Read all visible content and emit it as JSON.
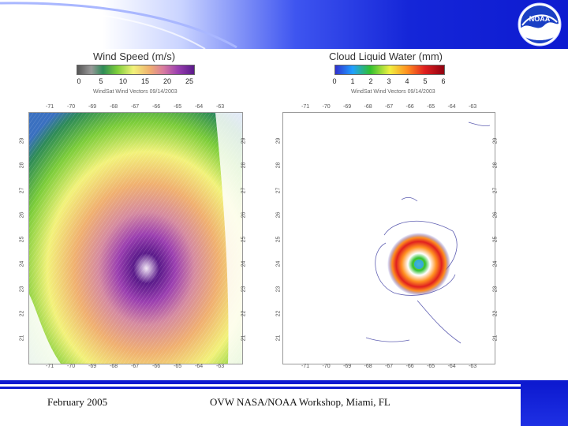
{
  "slide": {
    "footer_left": "February 2005",
    "footer_center": "OVW NASA/NOAA Workshop, Miami, FL",
    "logo_text": "NOAA"
  },
  "left_panel": {
    "legend_title": "Wind Speed (m/s)",
    "legend_ticks": [
      "0",
      "5",
      "10",
      "15",
      "20",
      "25"
    ],
    "subtitle": "WindSat Wind Vectors 09/14/2003",
    "x_ticks": [
      "-71",
      "-70",
      "-69",
      "-68",
      "-67",
      "-66",
      "-65",
      "-64",
      "-63"
    ],
    "y_ticks": [
      "29",
      "28",
      "27",
      "26",
      "25",
      "24",
      "23",
      "22",
      "21"
    ]
  },
  "right_panel": {
    "legend_title": "Cloud Liquid Water (mm)",
    "legend_ticks": [
      "0",
      "1",
      "2",
      "3",
      "4",
      "5",
      "6"
    ],
    "subtitle": "WindSat Wind Vectors 09/14/2003",
    "x_ticks": [
      "-71",
      "-70",
      "-69",
      "-68",
      "-67",
      "-66",
      "-65",
      "-64",
      "-63"
    ],
    "y_ticks": [
      "29",
      "28",
      "27",
      "26",
      "25",
      "24",
      "23",
      "22",
      "21"
    ]
  },
  "colors": {
    "header_blue": "#0d1ad0",
    "wind_scale": [
      "#555555",
      "#9a9a9a",
      "#2e8b57",
      "#7ccd3a",
      "#f2f27a",
      "#f0b070",
      "#d77aa0",
      "#9b3fb0",
      "#5a1a8a"
    ],
    "cloud_scale": [
      "#3030d0",
      "#20a0ff",
      "#30c030",
      "#f0f040",
      "#ff9020",
      "#e02020",
      "#900010"
    ]
  }
}
